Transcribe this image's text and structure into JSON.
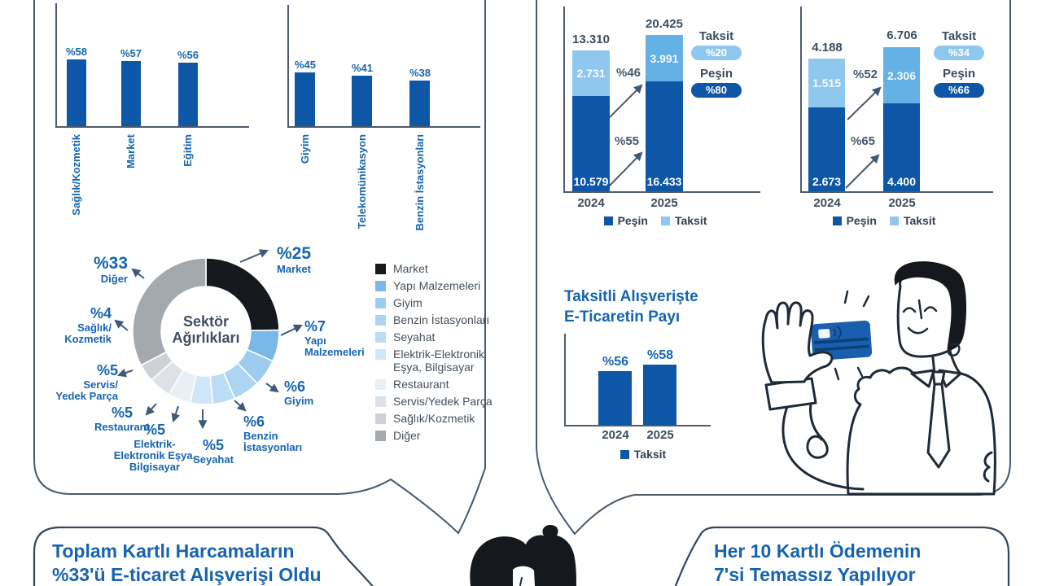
{
  "colors": {
    "bar_blue": "#0e56a6",
    "taksit_2024_blue": "#8fc8ee",
    "taksit_2025_blue": "#63b1e5",
    "accent_text_blue": "#1565b0",
    "navy_text": "#3b4d61",
    "axis_gray": "#4e5c6b",
    "card_blue": "#1a5fae"
  },
  "chart_data": [
    {
      "id": "sector-bars-left",
      "type": "bar",
      "categories": [
        "Sağlık/Kozmetik",
        "Market",
        "Eğitim"
      ],
      "values": [
        58,
        57,
        56
      ],
      "value_labels": [
        "%58",
        "%57",
        "%56"
      ],
      "ylim": [
        0,
        100
      ]
    },
    {
      "id": "sector-bars-right",
      "type": "bar",
      "categories": [
        "Giyim",
        "Telekomünikasyon",
        "Benzin İstasyonları"
      ],
      "values": [
        45,
        41,
        38
      ],
      "value_labels": [
        "%45",
        "%41",
        "%38"
      ],
      "ylim": [
        0,
        100
      ]
    },
    {
      "id": "sector-weights-donut",
      "type": "pie",
      "title": "Sektör Ağırlıkları",
      "center_label": {
        "line1": "Sektör",
        "line2": "Ağırlıkları"
      },
      "segments": [
        {
          "label": "Market",
          "value": 25,
          "pct_label": "%25",
          "callout_name": "Market",
          "color": "#15181c"
        },
        {
          "label": "Yapı Malzemeleri",
          "value": 7,
          "pct_label": "%7",
          "callout_name": "Yapı\nMalzemeleri",
          "color": "#79b9e7"
        },
        {
          "label": "Giyim",
          "value": 6,
          "pct_label": "%6",
          "callout_name": "Giyim",
          "color": "#9ccdef"
        },
        {
          "label": "Benzin İstasyonları",
          "value": 6,
          "pct_label": "%6",
          "callout_name": "Benzin\nİstasyonları",
          "color": "#abd5f2"
        },
        {
          "label": "Seyahat",
          "value": 5,
          "pct_label": "%5",
          "callout_name": "Seyahat",
          "color": "#badcf4"
        },
        {
          "label": "Elektrik-Elektronik Eşya, Bilgisayar",
          "value": 5,
          "pct_label": "%5",
          "callout_name": "Elektrik-\nElektronik Eşya,\nBilgisayar",
          "color": "#cfe7f8"
        },
        {
          "label": "Restaurant",
          "value": 5,
          "pct_label": "%5",
          "callout_name": "Restaurant",
          "color": "#e9f0f5"
        },
        {
          "label": "Servis/Yedek Parça",
          "value": 5,
          "pct_label": "%5",
          "callout_name": "Servis/\nYedek Parça",
          "color": "#dee2e6"
        },
        {
          "label": "Sağlık/Kozmetik",
          "value": 4,
          "pct_label": "%4",
          "callout_name": "Sağlık/\nKozmetik",
          "color": "#ced2d7"
        },
        {
          "label": "Diğer",
          "value": 33,
          "pct_label": "%33",
          "callout_name": "Diğer",
          "color": "#a4a9ae"
        }
      ]
    },
    {
      "id": "card-spend-stacked-left",
      "type": "bar",
      "stacked": true,
      "categories": [
        "2024",
        "2025"
      ],
      "series": [
        {
          "name": "Peşin",
          "values": [
            10579,
            16433
          ],
          "labels": [
            "10.579",
            "16.433"
          ]
        },
        {
          "name": "Taksit",
          "values": [
            2731,
            3991
          ],
          "labels": [
            "2.731",
            "3.991"
          ]
        }
      ],
      "totals": [
        "13.310",
        "20.425"
      ],
      "growth_arrows": {
        "taksit": "%46",
        "pesin": "%55"
      },
      "share_badges": {
        "taksit_label": "Taksit",
        "taksit_value": "%20",
        "pesin_label": "Peşin",
        "pesin_value": "%80"
      },
      "legend": [
        "Peşin",
        "Taksit"
      ]
    },
    {
      "id": "card-spend-stacked-right",
      "type": "bar",
      "stacked": true,
      "categories": [
        "2024",
        "2025"
      ],
      "series": [
        {
          "name": "Peşin",
          "values": [
            2673,
            4400
          ],
          "labels": [
            "2.673",
            "4.400"
          ]
        },
        {
          "name": "Taksit",
          "values": [
            1515,
            2306
          ],
          "labels": [
            "1.515",
            "2.306"
          ]
        }
      ],
      "totals": [
        "4.188",
        "6.706"
      ],
      "growth_arrows": {
        "taksit": "%52",
        "pesin": "%65"
      },
      "share_badges": {
        "taksit_label": "Taksit",
        "taksit_value": "%34",
        "pesin_label": "Peşin",
        "pesin_value": "%66"
      },
      "legend": [
        "Peşin",
        "Taksit"
      ]
    },
    {
      "id": "installment-ecommerce-share",
      "type": "bar",
      "title": "Taksitli Alışverişte\nE-Ticaretin Payı",
      "categories": [
        "2024",
        "2025"
      ],
      "values": [
        56,
        58
      ],
      "value_labels": [
        "%56",
        "%58"
      ],
      "legend": [
        "Taksit"
      ],
      "ylim": [
        0,
        100
      ]
    }
  ],
  "speech_bubbles": {
    "bottom_left": {
      "line1": "Toplam Kartlı Harcamaların",
      "line2": "%33'ü E-ticaret Alışverişi Oldu"
    },
    "bottom_right": {
      "line1": "Her 10 Kartlı Ödemenin",
      "line2": "7'si Temassız Yapılıyor"
    }
  }
}
